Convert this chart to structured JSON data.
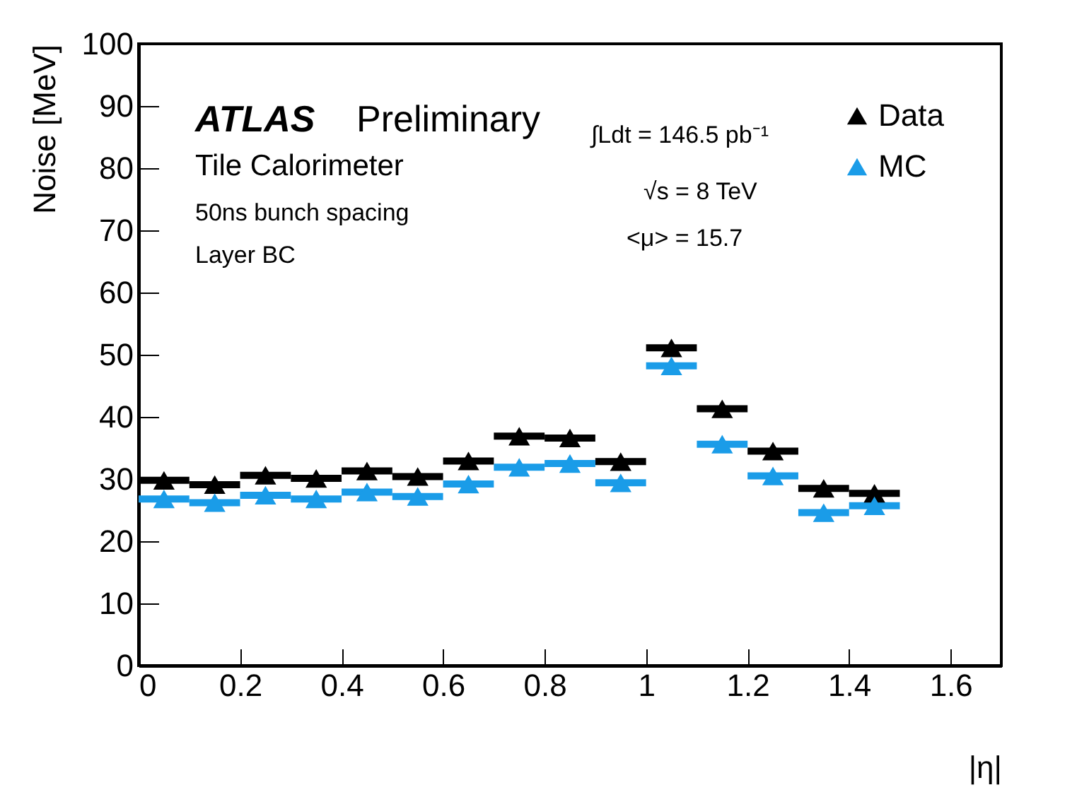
{
  "chart_data": {
    "type": "scatter",
    "xlabel": "|η|",
    "ylabel": "Noise [MeV]",
    "x": [
      0.05,
      0.15,
      0.25,
      0.35,
      0.45,
      0.55,
      0.65,
      0.75,
      0.85,
      0.95,
      1.05,
      1.15,
      1.25,
      1.35,
      1.45
    ],
    "series": [
      {
        "name": "Data",
        "color": "#000000",
        "values": [
          29.8,
          29.1,
          30.6,
          30.1,
          31.3,
          30.4,
          32.9,
          36.9,
          36.6,
          32.8,
          51.1,
          41.3,
          34.5,
          28.5,
          27.7
        ],
        "xerrors": [
          0.05,
          0.05,
          0.05,
          0.05,
          0.05,
          0.05,
          0.05,
          0.05,
          0.05,
          0.05,
          0.05,
          0.05,
          0.05,
          0.05,
          0.05
        ]
      },
      {
        "name": "MC",
        "color": "#1a9ce8",
        "values": [
          26.8,
          26.2,
          27.4,
          26.8,
          27.9,
          27.2,
          29.2,
          31.9,
          32.5,
          29.4,
          48.2,
          35.6,
          30.5,
          24.6,
          25.7
        ],
        "xerrors": [
          0.05,
          0.05,
          0.05,
          0.05,
          0.05,
          0.05,
          0.05,
          0.05,
          0.05,
          0.05,
          0.05,
          0.05,
          0.05,
          0.05,
          0.05
        ]
      }
    ],
    "xlim": [
      0,
      1.7
    ],
    "ylim": [
      0,
      100
    ],
    "xticks": [
      0,
      0.2,
      0.4,
      0.6,
      0.8,
      1,
      1.2,
      1.4,
      1.6
    ],
    "yticks": [
      0,
      10,
      20,
      30,
      40,
      50,
      60,
      70,
      80,
      90,
      100
    ],
    "marker": "triangle",
    "grid": false,
    "legend": "top right",
    "annotations": [
      "ATLAS",
      "Preliminary",
      "Tile Calorimeter",
      "50ns bunch spacing",
      "Layer BC",
      "∫Ldt = 146.5 pb⁻¹",
      "√s = 8 TeV",
      "<μ> = 15.7"
    ]
  }
}
